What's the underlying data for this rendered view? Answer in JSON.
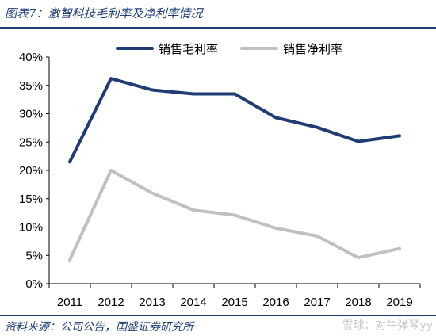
{
  "header": {
    "title": "图表7：激智科技毛利率及净利率情况"
  },
  "footer": {
    "source": "资料来源：公司公告，国盛证券研究所",
    "watermark": "雪球：对牛弹琴yy"
  },
  "chart_data": {
    "type": "line",
    "title": "图表7：激智科技毛利率及净利率情况",
    "xlabel": "",
    "ylabel": "",
    "x": [
      "2011",
      "2012",
      "2013",
      "2014",
      "2015",
      "2016",
      "2017",
      "2018",
      "2019"
    ],
    "ylim": [
      0,
      40
    ],
    "yticks": [
      "0%",
      "5%",
      "10%",
      "15%",
      "20%",
      "25%",
      "30%",
      "35%",
      "40%"
    ],
    "grid": false,
    "legend_position": "top",
    "series": [
      {
        "name": "销售毛利率",
        "color": "#1f3c74",
        "values": [
          21.5,
          36.2,
          34.2,
          33.5,
          33.5,
          29.3,
          27.6,
          25.1,
          26.1
        ]
      },
      {
        "name": "销售净利率",
        "color": "#c0c0c0",
        "values": [
          4.2,
          20.0,
          16.0,
          13.0,
          12.1,
          9.8,
          8.4,
          4.6,
          6.2
        ]
      }
    ]
  }
}
